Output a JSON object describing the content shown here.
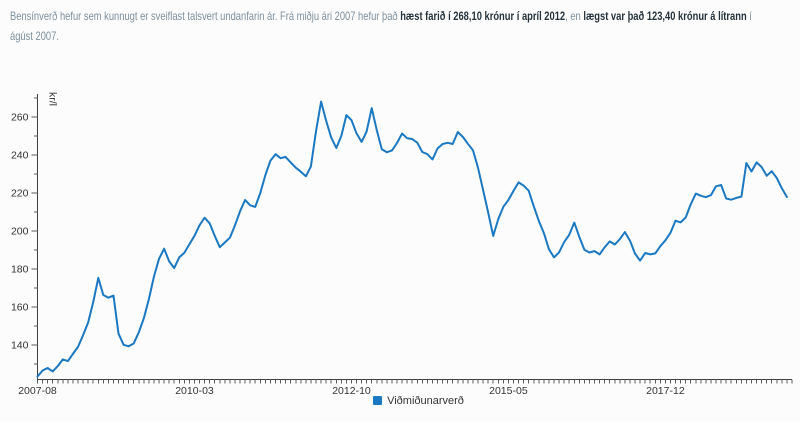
{
  "paragraph": {
    "lines": [
      [
        {
          "text": "Bensínverð hefur sem kunnugt er sveiflast talsvert undanfarin ár. Frá miðju ári 2007 hefur það ",
          "bold": false
        },
        {
          "text": "hæst farið í 268,10 krónur í apríl 2012",
          "bold": true
        },
        {
          "text": ", en ",
          "bold": false
        },
        {
          "text": "lægst var það 123,40 krónur á lítrann",
          "bold": true
        },
        {
          "text": " í",
          "bold": false
        }
      ],
      [
        {
          "text": "ágúst 2007.",
          "bold": false
        }
      ]
    ]
  },
  "chart_data": {
    "type": "line",
    "title": "",
    "xlabel": "",
    "ylabel": "kr/l",
    "x_range": [
      "2007-08",
      "2019-12"
    ],
    "x_frequency": "monthly",
    "x_ticks": [
      {
        "m": 0,
        "label": "2007-08"
      },
      {
        "m": 31,
        "label": "2010-03"
      },
      {
        "m": 62,
        "label": "2012-10"
      },
      {
        "m": 93,
        "label": "2015-05"
      },
      {
        "m": 124,
        "label": "2017-12"
      }
    ],
    "y_major_ticks": [
      140,
      160,
      180,
      200,
      220,
      240,
      260
    ],
    "y_minor_ticks": [
      130,
      150,
      170,
      190,
      210,
      230,
      250,
      270
    ],
    "ylim": [
      122,
      272
    ],
    "grid": false,
    "legend_position": "bottom-center",
    "max_point": {
      "value": 268.1,
      "month": "2012-04"
    },
    "min_point": {
      "value": 123.4,
      "month": "2007-08"
    },
    "series": [
      {
        "name": "Viðmiðunarverð",
        "color": "#1b78c2",
        "unit": "kr/l",
        "values": [
          123.4,
          126.6,
          127.9,
          126.1,
          128.9,
          132.4,
          131.5,
          135.3,
          139.0,
          145.2,
          151.8,
          162.5,
          175.3,
          166.3,
          164.9,
          166.0,
          146.0,
          140.1,
          139.3,
          140.8,
          146.7,
          154.0,
          164.2,
          176.1,
          185.3,
          190.7,
          184.0,
          180.5,
          186.2,
          188.5,
          193.0,
          197.5,
          203.0,
          207.0,
          204.0,
          197.5,
          191.5,
          194.0,
          196.5,
          203.0,
          210.5,
          216.3,
          213.5,
          212.7,
          220.0,
          229.5,
          237.0,
          240.4,
          238.3,
          239.0,
          236.1,
          233.3,
          231.2,
          228.8,
          234.0,
          252.5,
          268.1,
          258.1,
          249.2,
          243.7,
          250.0,
          261.0,
          258.3,
          251.4,
          246.9,
          252.3,
          264.7,
          253.0,
          243.0,
          241.5,
          242.4,
          246.3,
          251.3,
          248.8,
          248.4,
          246.5,
          241.6,
          240.4,
          237.7,
          243.4,
          245.8,
          246.4,
          245.8,
          252.1,
          249.5,
          245.9,
          242.4,
          233.3,
          221.6,
          209.7,
          197.4,
          206.3,
          212.8,
          216.3,
          221.1,
          225.6,
          223.9,
          221.2,
          213.1,
          205.3,
          198.9,
          190.4,
          186.1,
          188.8,
          194.1,
          198.0,
          204.4,
          196.9,
          190.1,
          188.7,
          189.4,
          187.7,
          191.4,
          194.5,
          192.9,
          195.7,
          199.4,
          194.9,
          188.1,
          184.4,
          188.4,
          187.7,
          188.2,
          192.0,
          195.1,
          199.1,
          205.4,
          204.5,
          207.1,
          214.0,
          219.7,
          218.5,
          217.8,
          218.9,
          223.5,
          224.2,
          217.1,
          216.5,
          217.4,
          218.1,
          235.8,
          231.3,
          236.1,
          233.7,
          229.1,
          231.5,
          227.9,
          222.4,
          217.9
        ]
      }
    ]
  },
  "colors": {
    "line_blue": "#1b78c2",
    "text_muted": "#7c8f9d",
    "text_bold": "#24323c",
    "axis": "#3f3f3f",
    "tick": "#5c5c5c",
    "tick_label": "#333333",
    "background": "#fcfcfc"
  }
}
